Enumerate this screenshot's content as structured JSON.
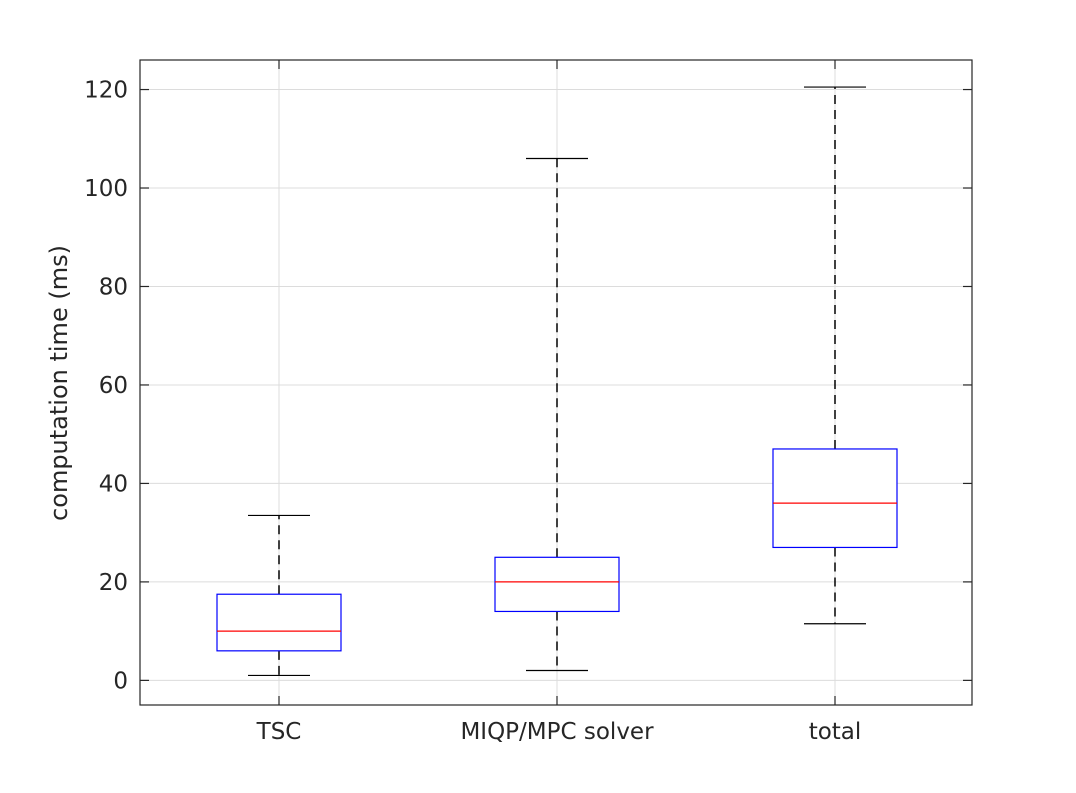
{
  "chart_data": {
    "type": "box",
    "title": "",
    "xlabel": "",
    "ylabel": "computation time (ms)",
    "ylim": [
      -5,
      126
    ],
    "yticks": [
      0,
      20,
      40,
      60,
      80,
      100,
      120
    ],
    "ytick_labels": [
      "0",
      "20",
      "40",
      "60",
      "80",
      "100",
      "120"
    ],
    "grid": true,
    "categories": [
      "TSC",
      "MIQP/MPC solver",
      "total"
    ],
    "boxes": [
      {
        "category": "TSC",
        "whisker_low": 1,
        "q1": 6,
        "median": 10,
        "q3": 17.5,
        "whisker_high": 33.5
      },
      {
        "category": "MIQP/MPC solver",
        "whisker_low": 2,
        "q1": 14,
        "median": 20,
        "q3": 25,
        "whisker_high": 106
      },
      {
        "category": "total",
        "whisker_low": 11.5,
        "q1": 27,
        "median": 36,
        "q3": 47,
        "whisker_high": 120.5
      }
    ],
    "colors": {
      "box": "#0000ff",
      "median": "#ff0000",
      "whisker": "#000000",
      "grid": "#dcdcdc",
      "axis": "#262626"
    }
  }
}
